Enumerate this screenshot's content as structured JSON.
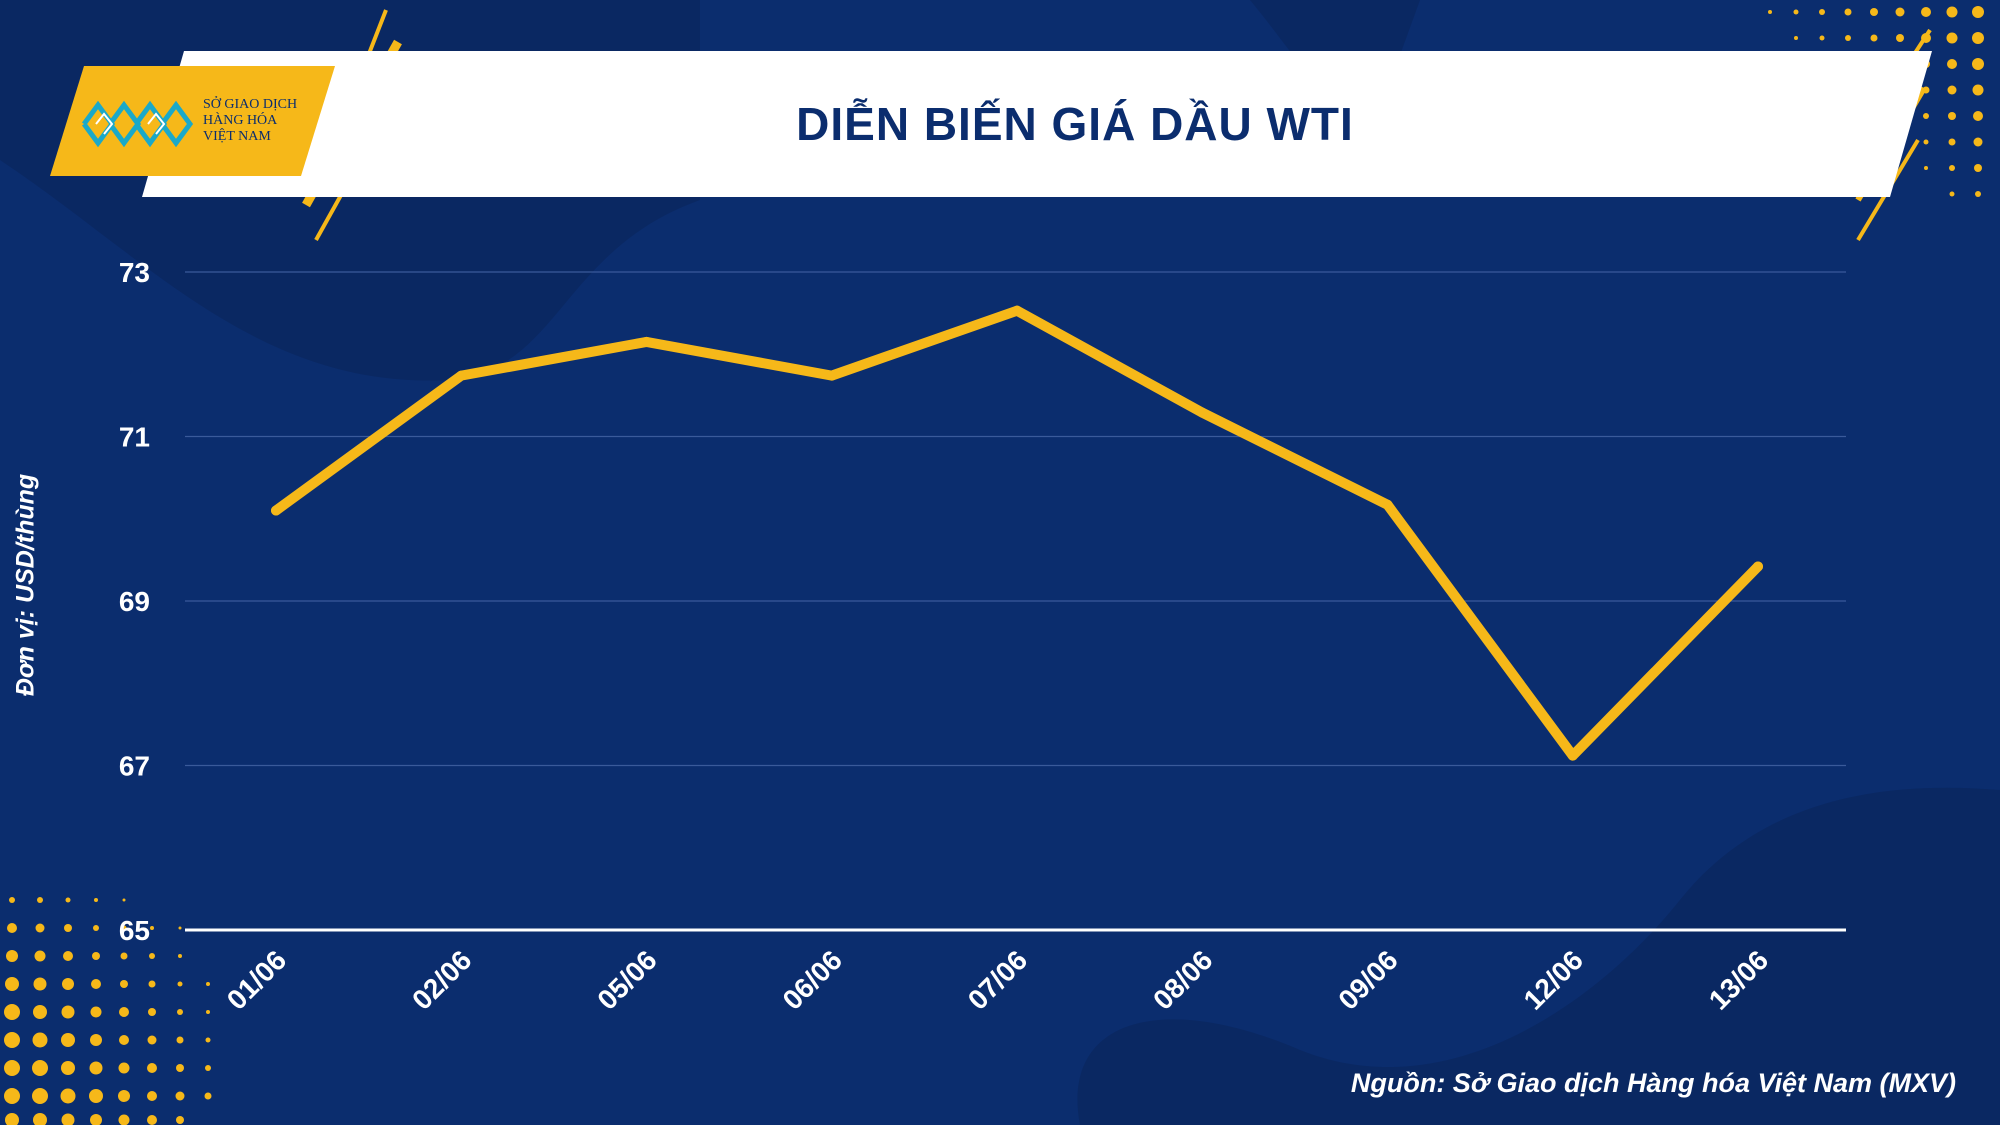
{
  "header": {
    "title": "DIỄN BIẾN GIÁ DẦU WTI",
    "logo_lines": [
      "SỞ GIAO DỊCH",
      "HÀNG HÓA",
      "VIỆT NAM"
    ]
  },
  "footer": {
    "source": "Nguồn: Sở Giao dịch Hàng hóa Việt Nam (MXV)"
  },
  "colors": {
    "background": "#0b2d6e",
    "line": "#f6b819",
    "accent": "#f6b819",
    "text": "#ffffff"
  },
  "chart_data": {
    "type": "line",
    "title": "DIỄN BIẾN GIÁ DẦU WTI",
    "xlabel": "",
    "ylabel": "Đơn vị: USD/thùng",
    "categories": [
      "01/06",
      "02/06",
      "05/06",
      "06/06",
      "07/06",
      "08/06",
      "09/06",
      "12/06",
      "13/06"
    ],
    "series": [
      {
        "values": [
          70.1,
          71.74,
          72.15,
          71.74,
          72.53,
          71.29,
          70.17,
          67.12,
          69.42
        ]
      }
    ],
    "yticks": [
      65,
      67,
      69,
      71,
      73
    ],
    "ylim": [
      65,
      73
    ],
    "grid": true,
    "legend": "none"
  }
}
